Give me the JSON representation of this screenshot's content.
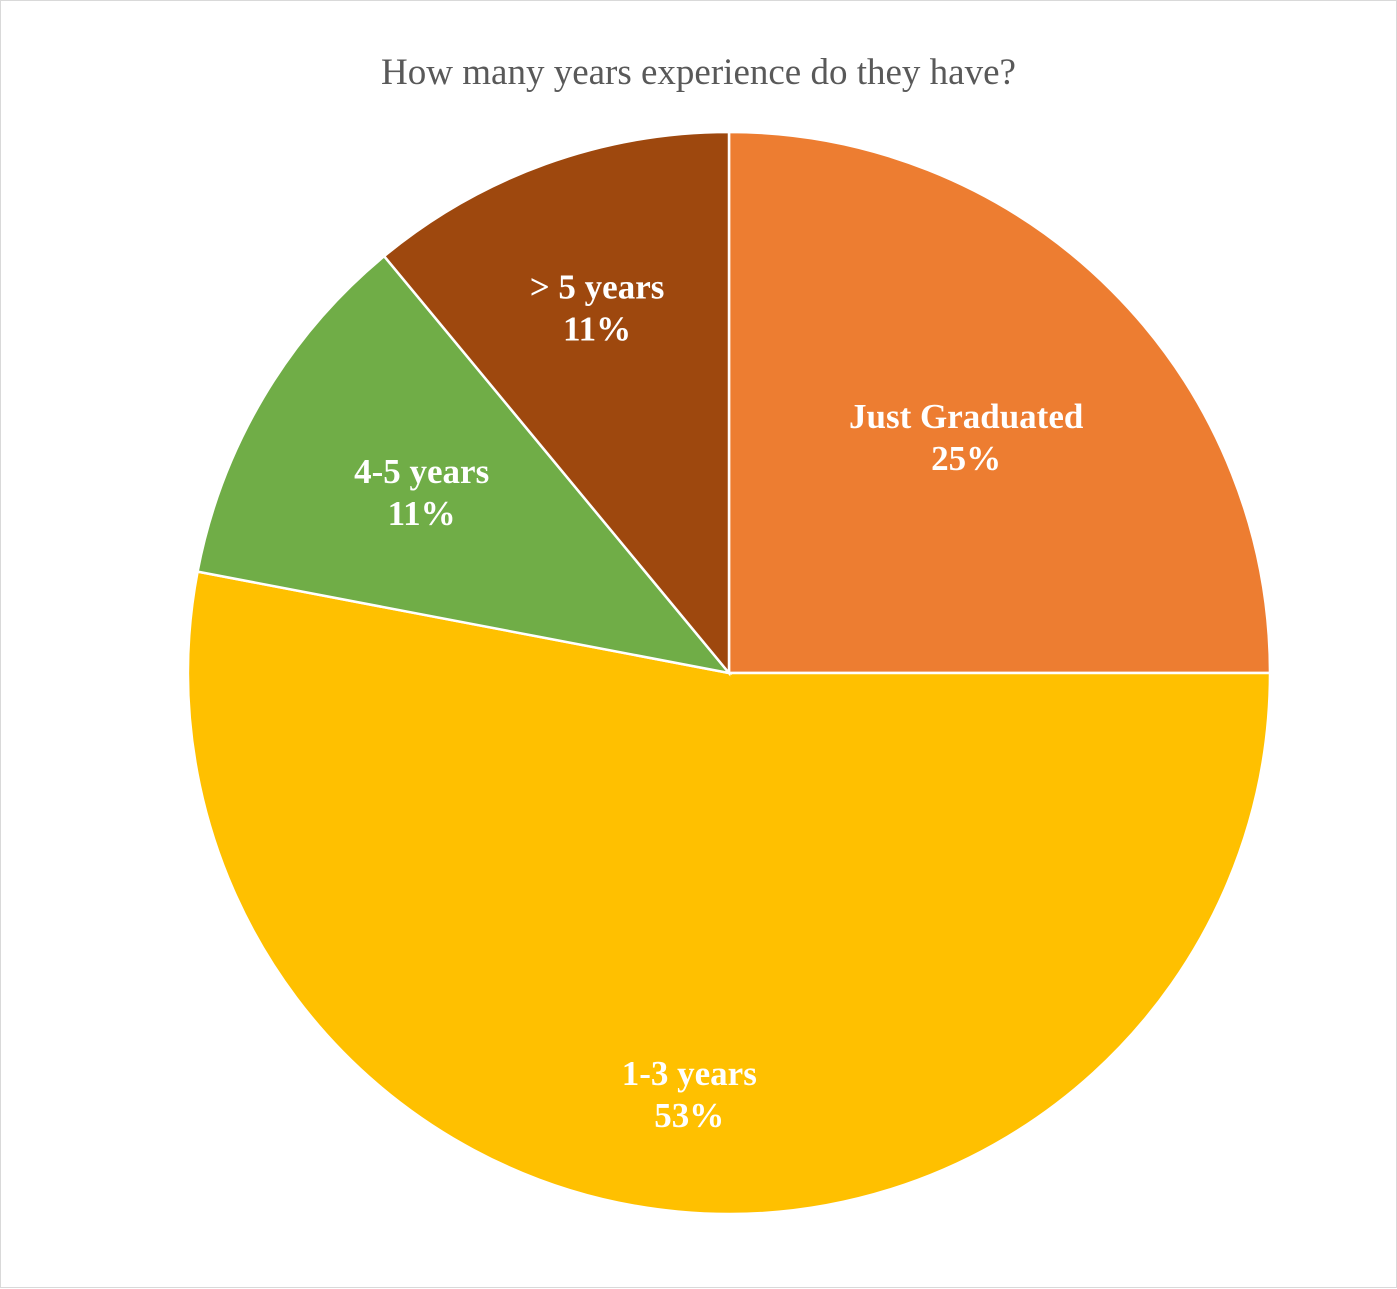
{
  "chart_data": {
    "type": "pie",
    "title": "How many years experience do they have?",
    "slices": [
      {
        "name": "Just Graduated",
        "value": 25,
        "label": "25%",
        "color": "#ED7D31"
      },
      {
        "name": "1-3 years",
        "value": 53,
        "label": "53%",
        "color": "#FFC000"
      },
      {
        "name": "4-5 years",
        "value": 11,
        "label": "11%",
        "color": "#70AD47"
      },
      {
        "name": "> 5 years",
        "value": 11,
        "label": "11%",
        "color": "#9E480E"
      }
    ],
    "legend": "none",
    "start_angle": "12 o'clock",
    "direction": "clockwise"
  }
}
